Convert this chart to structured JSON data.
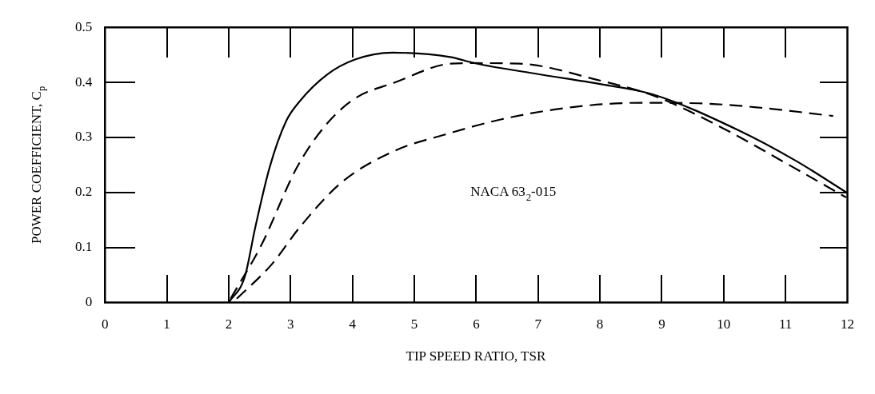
{
  "chart_data": {
    "type": "line",
    "xlabel": "TIP SPEED RATIO, TSR",
    "ylabel": "POWER COEFFICIENT, C$_{p}$",
    "xlim": [
      0,
      12
    ],
    "xticks": [
      0,
      1,
      2,
      3,
      4,
      5,
      6,
      7,
      8,
      9,
      10,
      11,
      12
    ],
    "ylim": [
      0,
      0.5
    ],
    "yticks": [
      0,
      0.1,
      0.2,
      0.3,
      0.4,
      0.5
    ],
    "grid": false,
    "legend": false,
    "marker": "none",
    "annotations": [
      "NACA 63$_{2}$-015"
    ],
    "series": [
      {
        "color": "#000000",
        "line_style": "solid",
        "x": [
          2,
          2.26,
          2.43,
          2.66,
          2.93,
          3.15,
          3.59,
          4.03,
          4.65,
          5.58,
          5.97,
          7.0,
          8.0,
          8.86,
          10.24,
          11.16,
          12
        ],
        "values": [
          0,
          0.047,
          0.137,
          0.245,
          0.33,
          0.366,
          0.414,
          0.441,
          0.454,
          0.446,
          0.435,
          0.415,
          0.397,
          0.378,
          0.313,
          0.258,
          0.199
        ]
      },
      {
        "color": "#000000",
        "line_style": "dashed",
        "x": [
          2.03,
          2.53,
          3.1,
          3.55,
          4.03,
          4.69,
          5.59,
          5.97,
          6.7,
          7.94,
          8.91,
          10.0,
          11.01,
          11.98
        ],
        "values": [
          0.007,
          0.105,
          0.245,
          0.32,
          0.37,
          0.4,
          0.434,
          0.435,
          0.434,
          0.405,
          0.374,
          0.316,
          0.253,
          0.191
        ]
      },
      {
        "color": "#000000",
        "line_style": "dashed",
        "x": [
          2.13,
          2.7,
          3.15,
          3.82,
          4.69,
          5.49,
          6.41,
          7.55,
          8.68,
          9.59,
          10.5,
          11.77
        ],
        "values": [
          0.007,
          0.07,
          0.137,
          0.218,
          0.276,
          0.305,
          0.333,
          0.355,
          0.363,
          0.362,
          0.355,
          0.339
        ]
      }
    ]
  }
}
